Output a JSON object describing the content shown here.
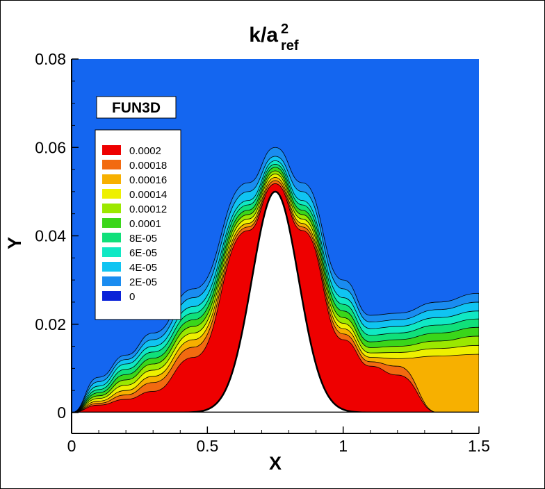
{
  "chart_data": {
    "type": "contour",
    "title": {
      "base": "k/a",
      "superscript": "2",
      "subscript": "ref"
    },
    "xlabel": "X",
    "ylabel": "Y",
    "xlim": [
      0,
      1.5
    ],
    "ylim": [
      0,
      0.08
    ],
    "xticks": [
      {
        "value": 0,
        "label": "0"
      },
      {
        "value": 0.5,
        "label": "0.5"
      },
      {
        "value": 1,
        "label": "1"
      },
      {
        "value": 1.5,
        "label": "1.5"
      }
    ],
    "yticks": [
      {
        "value": 0,
        "label": "0"
      },
      {
        "value": 0.02,
        "label": "0.02"
      },
      {
        "value": 0.04,
        "label": "0.04"
      },
      {
        "value": 0.06,
        "label": "0.06"
      },
      {
        "value": 0.08,
        "label": "0.08"
      }
    ],
    "code_label": "FUN3D",
    "background_color": "#1466f0",
    "legend": {
      "placement": "upper-left",
      "levels": [
        {
          "value": 0.0002,
          "label": "0.0002",
          "color": "#ee0000"
        },
        {
          "value": 0.00018,
          "label": "0.00018",
          "color": "#f26a10"
        },
        {
          "value": 0.00016,
          "label": "0.00016",
          "color": "#f7b000"
        },
        {
          "value": 0.00014,
          "label": "0.00014",
          "color": "#eef000"
        },
        {
          "value": 0.00012,
          "label": "0.00012",
          "color": "#9be800"
        },
        {
          "value": 0.0001,
          "label": "0.0001",
          "color": "#3ad61a"
        },
        {
          "value": 8e-05,
          "label": "8E-05",
          "color": "#10e07a"
        },
        {
          "value": 6e-05,
          "label": "6E-05",
          "color": "#10e8c4"
        },
        {
          "value": 4e-05,
          "label": "4E-05",
          "color": "#10c4f2"
        },
        {
          "value": 2e-05,
          "label": "2E-05",
          "color": "#1a8cf0"
        },
        {
          "value": 0,
          "label": "0",
          "color": "#0a22d8"
        }
      ]
    },
    "bump": {
      "center_x": 0.75,
      "peak_y": 0.05,
      "width": 0.18
    },
    "contour_bands": [
      {
        "level": 2e-05,
        "outer_y": [
          0.0,
          0.008,
          0.013,
          0.018,
          0.028,
          0.052,
          0.06,
          0.052,
          0.03,
          0.022,
          0.0225,
          0.025,
          0.027
        ],
        "color": "#1a8cf0"
      },
      {
        "level": 4e-05,
        "outer_y": [
          0.0,
          0.007,
          0.012,
          0.0165,
          0.026,
          0.05,
          0.058,
          0.05,
          0.028,
          0.0205,
          0.021,
          0.0233,
          0.025
        ],
        "color": "#10c4f2"
      },
      {
        "level": 6e-05,
        "outer_y": [
          0.0,
          0.006,
          0.011,
          0.015,
          0.024,
          0.048,
          0.057,
          0.048,
          0.026,
          0.019,
          0.0195,
          0.0215,
          0.023
        ],
        "color": "#10e8c4"
      },
      {
        "level": 8e-05,
        "outer_y": [
          0.0,
          0.0052,
          0.0098,
          0.0137,
          0.0225,
          0.047,
          0.0562,
          0.047,
          0.0245,
          0.0175,
          0.018,
          0.0198,
          0.0212
        ],
        "color": "#10e07a"
      },
      {
        "level": 0.0001,
        "outer_y": [
          0.0,
          0.0045,
          0.0086,
          0.0123,
          0.021,
          0.0458,
          0.0555,
          0.0458,
          0.023,
          0.016,
          0.0165,
          0.018,
          0.0193
        ],
        "color": "#3ad61a"
      },
      {
        "level": 0.00012,
        "outer_y": [
          0.0,
          0.0038,
          0.0074,
          0.011,
          0.0195,
          0.0448,
          0.0547,
          0.0448,
          0.0215,
          0.0147,
          0.015,
          0.0162,
          0.0173
        ],
        "color": "#9be800"
      },
      {
        "level": 0.00014,
        "outer_y": [
          0.0,
          0.0032,
          0.0062,
          0.0096,
          0.018,
          0.0438,
          0.054,
          0.0438,
          0.0202,
          0.0135,
          0.0136,
          0.0145,
          0.0152
        ],
        "color": "#eef000"
      },
      {
        "level": 0.00016,
        "outer_y": [
          0.0,
          0.0026,
          0.005,
          0.0082,
          0.0165,
          0.0428,
          0.0532,
          0.0428,
          0.019,
          0.0125,
          0.0122,
          0.0128,
          0.0132
        ],
        "color": "#f7b000"
      },
      {
        "level": 0.00018,
        "outer_y": [
          0.0,
          0.0021,
          0.004,
          0.0068,
          0.0148,
          0.042,
          0.0525,
          0.042,
          0.0178,
          0.0115,
          0.0105,
          0.0,
          0.0
        ],
        "color": "#f26a10"
      },
      {
        "level": 0.0002,
        "outer_y": [
          0.0,
          0.0017,
          0.003,
          0.0048,
          0.0125,
          0.0412,
          0.0518,
          0.0412,
          0.0165,
          0.0105,
          0.0085,
          0.0,
          0.0
        ],
        "color": "#ee0000"
      }
    ],
    "contour_x": [
      0.0,
      0.1,
      0.2,
      0.3,
      0.45,
      0.65,
      0.75,
      0.85,
      1.0,
      1.1,
      1.2,
      1.35,
      1.5
    ]
  }
}
